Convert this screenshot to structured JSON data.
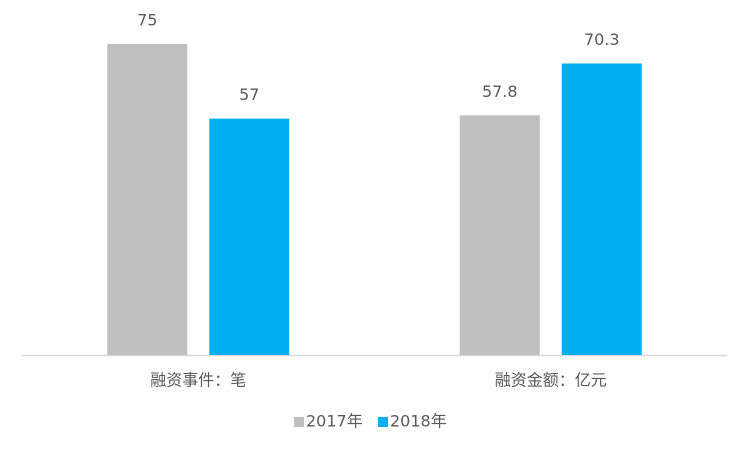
{
  "chart_data": {
    "type": "bar",
    "categories": [
      "融资事件：笔",
      "融资金额：亿元"
    ],
    "series": [
      {
        "name": "2017年",
        "color": "#bfbfbf",
        "values": [
          75,
          57.8
        ]
      },
      {
        "name": "2018年",
        "color": "#00b0f0",
        "values": [
          57,
          70.3
        ]
      }
    ],
    "legend": "bottom"
  }
}
